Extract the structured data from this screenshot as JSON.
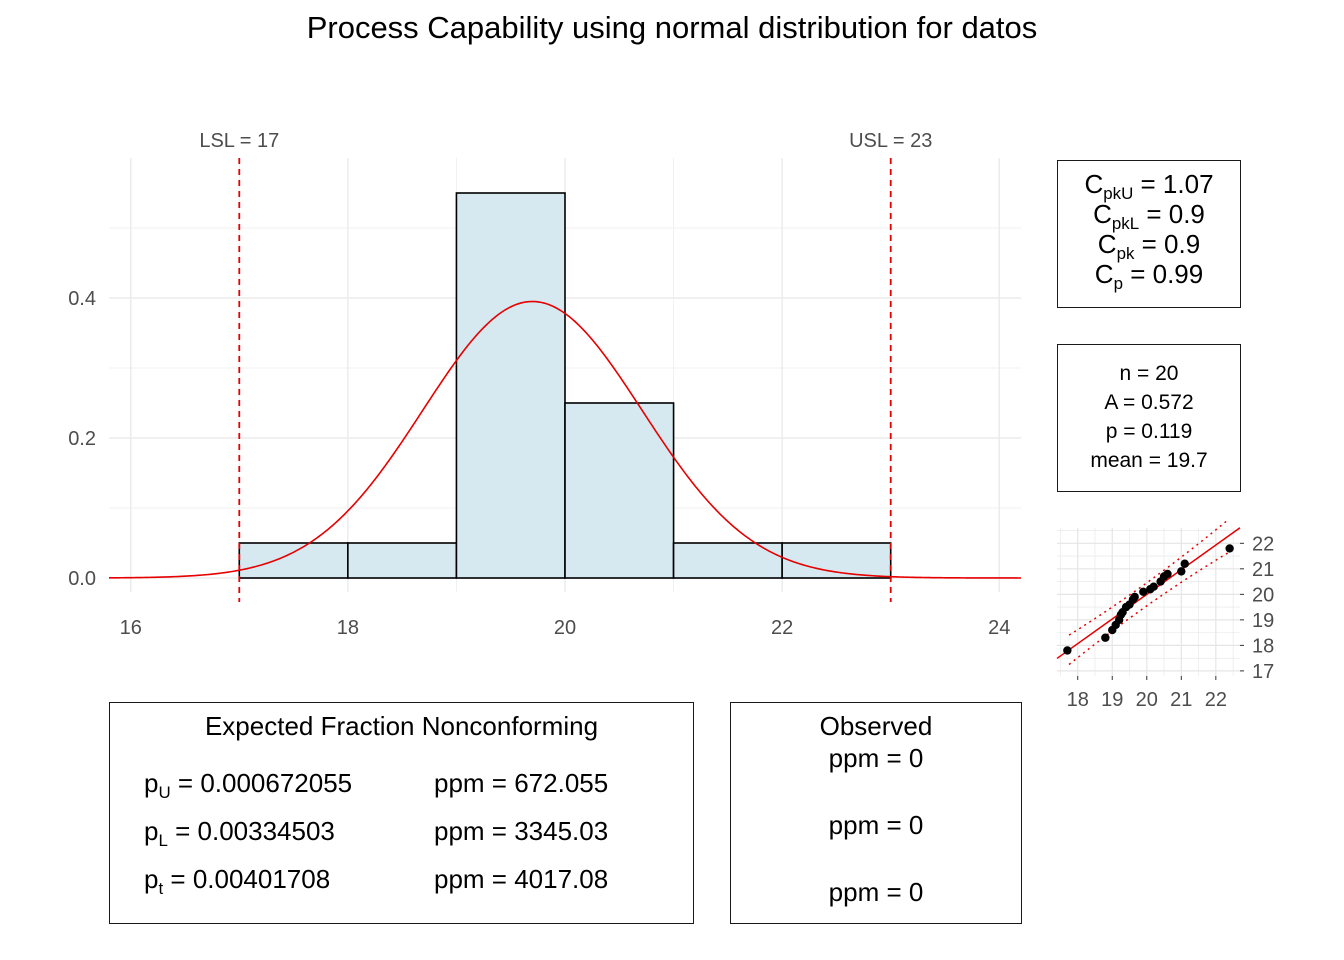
{
  "title": "Process Capability using normal distribution for datos",
  "chart_data": [
    {
      "type": "bar",
      "subtype": "histogram-with-normal-curve",
      "bins": [
        {
          "x0": 17,
          "x1": 18,
          "density": 0.05
        },
        {
          "x0": 18,
          "x1": 19,
          "density": 0.05
        },
        {
          "x0": 19,
          "x1": 20,
          "density": 0.55
        },
        {
          "x0": 20,
          "x1": 21,
          "density": 0.25
        },
        {
          "x0": 21,
          "x1": 22,
          "density": 0.05
        },
        {
          "x0": 22,
          "x1": 23,
          "density": 0.05
        }
      ],
      "normal_curve": {
        "mean": 19.7,
        "sd": 1.01
      },
      "xlim": [
        15.8,
        24.2
      ],
      "ylim": [
        -0.02,
        0.6
      ],
      "xticks": [
        16,
        18,
        20,
        22,
        24
      ],
      "yticks": [
        0.0,
        0.2,
        0.4
      ],
      "ytick_labels": [
        "0.0",
        "0.2",
        "0.4"
      ],
      "spec_limits": [
        {
          "label": "LSL = 17",
          "value": 17
        },
        {
          "label": "USL = 23",
          "value": 23
        }
      ],
      "colors": {
        "bar_fill": "#d6e9f1",
        "bar_stroke": "#000000",
        "curve": "#e60000",
        "limit": "#e60000",
        "grid": "#ebebeb"
      },
      "grid": true
    },
    {
      "type": "scatter",
      "subtype": "qq-plot",
      "points": [
        [
          17.7,
          17.8
        ],
        [
          18.8,
          18.3
        ],
        [
          19.0,
          18.6
        ],
        [
          19.1,
          18.8
        ],
        [
          19.2,
          19.0
        ],
        [
          19.25,
          19.2
        ],
        [
          19.3,
          19.3
        ],
        [
          19.4,
          19.5
        ],
        [
          19.5,
          19.6
        ],
        [
          19.6,
          19.8
        ],
        [
          19.65,
          19.9
        ],
        [
          19.9,
          20.1
        ],
        [
          20.1,
          20.2
        ],
        [
          20.2,
          20.3
        ],
        [
          20.4,
          20.5
        ],
        [
          20.5,
          20.7
        ],
        [
          20.6,
          20.8
        ],
        [
          21.0,
          20.9
        ],
        [
          21.1,
          21.2
        ],
        [
          22.4,
          21.8
        ]
      ],
      "xlim": [
        17.4,
        22.7
      ],
      "ylim": [
        16.8,
        22.6
      ],
      "xticks": [
        18,
        19,
        20,
        21,
        22
      ],
      "yticks": [
        17,
        18,
        19,
        20,
        21,
        22
      ],
      "reference_line": {
        "intercept": 0.68,
        "slope": 0.966
      },
      "colors": {
        "points": "#000000",
        "line": "#e60000"
      },
      "grid": true
    }
  ],
  "capability": {
    "cpku_label": "C",
    "cpku_sub": "pkU",
    "cpku_value": "= 1.07",
    "cpkl_label": "C",
    "cpkl_sub": "pkL",
    "cpkl_value": "= 0.9",
    "cpk_label": "C",
    "cpk_sub": "pk",
    "cpk_value": "= 0.9",
    "cp_label": "C",
    "cp_sub": "p",
    "cp_value": "= 0.99"
  },
  "stats": {
    "n": "n = 20",
    "a": "A = 0.572",
    "p": "p = 0.119",
    "mean": "mean = 19.7"
  },
  "expected": {
    "title": "Expected Fraction Nonconforming",
    "pu_label": "p",
    "pu_sub": "U",
    "pu_value": "= 0.000672055",
    "pl_label": "p",
    "pl_sub": "L",
    "pl_value": "= 0.00334503",
    "pt_label": "p",
    "pt_sub": "t",
    "pt_value": "= 0.00401708",
    "ppm_u": "ppm = 672.055",
    "ppm_l": "ppm = 3345.03",
    "ppm_t": "ppm = 4017.08"
  },
  "observed": {
    "title": "Observed",
    "ppm_1": "ppm = 0",
    "ppm_2": "ppm = 0",
    "ppm_3": "ppm = 0"
  }
}
